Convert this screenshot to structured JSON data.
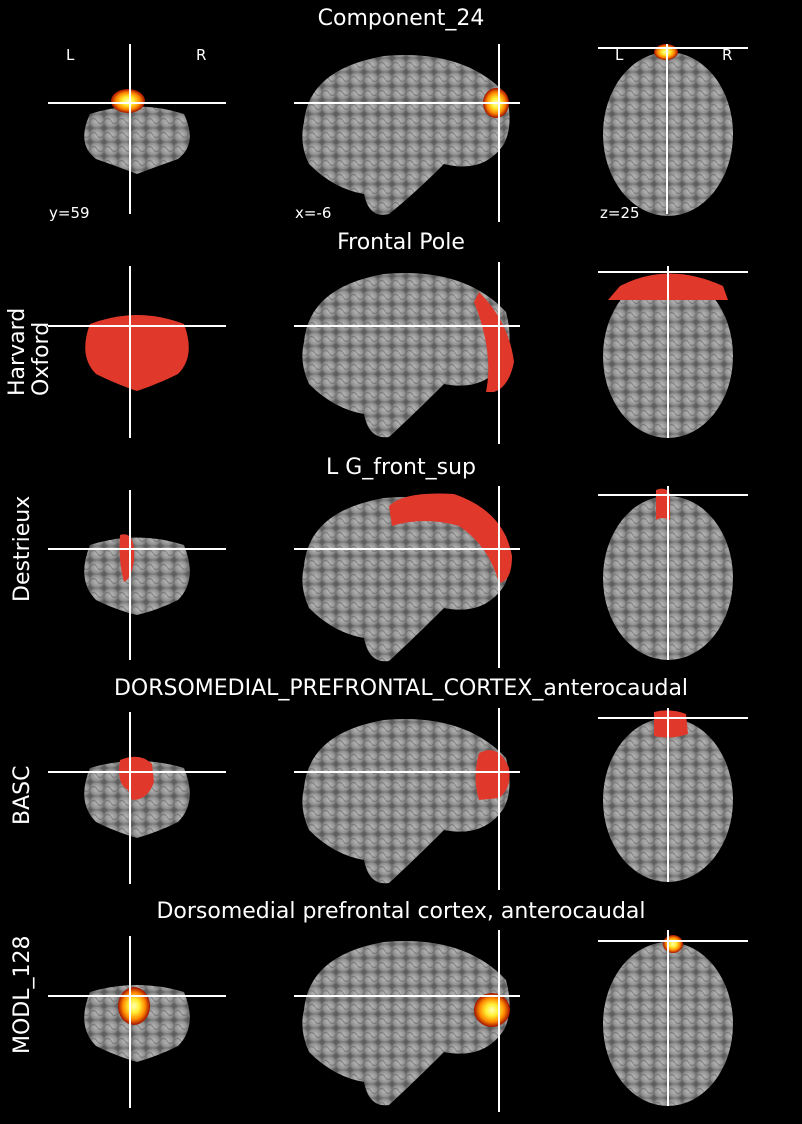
{
  "row1": {
    "title": "Component_24",
    "orientation": {
      "left": "L",
      "right": "R",
      "left2": "L",
      "right2": "R"
    },
    "coords": {
      "y": "y=59",
      "x": "x=-6",
      "z": "z=25"
    }
  },
  "row2": {
    "title": "Frontal Pole",
    "atlas": "Harvard\nOxford"
  },
  "row3": {
    "title": "L G_front_sup",
    "atlas": "Destrieux"
  },
  "row4": {
    "title": "DORSOMEDIAL_PREFRONTAL_CORTEX_anterocaudal",
    "atlas": "BASC"
  },
  "row5": {
    "title": "Dorsomedial prefrontal cortex, anterocaudal",
    "atlas": "MODL_128"
  },
  "colors": {
    "background": "#000000",
    "crosshair": "#ffffff",
    "atlas_region": "#e0392b",
    "hot": "#ffff66"
  }
}
